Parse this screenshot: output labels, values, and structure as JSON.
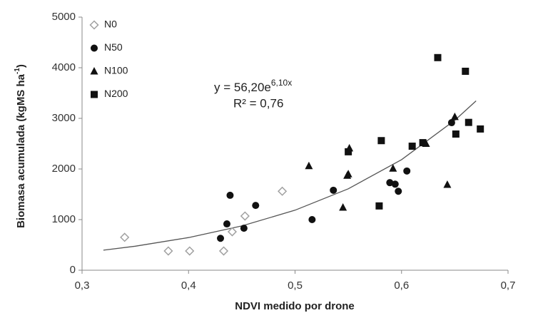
{
  "chart_data": {
    "type": "scatter",
    "xlabel": "NDVI medido por drone",
    "ylabel": "Biomasa acumulada (kgMS ha",
    "ylabel_sup": "-1",
    "ylabel_end": ")",
    "xlim": [
      0.3,
      0.7
    ],
    "xticks": [
      {
        "value": 0.3,
        "label": "0,3"
      },
      {
        "value": 0.4,
        "label": "0,4"
      },
      {
        "value": 0.5,
        "label": "0,5"
      },
      {
        "value": 0.6,
        "label": "0,6"
      },
      {
        "value": 0.7,
        "label": "0,7"
      }
    ],
    "ylim": [
      0,
      5000
    ],
    "yticks": [
      0,
      1000,
      2000,
      3000,
      4000,
      5000
    ],
    "grid": false,
    "legend": "upper left",
    "series": [
      {
        "name": "N0",
        "marker": "diamond",
        "color": "#a0a0a0",
        "x": [
          0.34,
          0.381,
          0.401,
          0.433,
          0.441,
          0.453,
          0.488
        ],
        "values": [
          650,
          380,
          380,
          380,
          760,
          1070,
          1560
        ]
      },
      {
        "name": "N50",
        "marker": "circle",
        "color": "#111111",
        "x": [
          0.43,
          0.436,
          0.439,
          0.452,
          0.463,
          0.516,
          0.536,
          0.589,
          0.594,
          0.597,
          0.605,
          0.647
        ],
        "values": [
          630,
          915,
          1480,
          830,
          1280,
          1000,
          1580,
          1730,
          1700,
          1560,
          1960,
          2915
        ]
      },
      {
        "name": "N100",
        "marker": "triangle",
        "color": "#111111",
        "x": [
          0.513,
          0.545,
          0.549,
          0.55,
          0.551,
          0.592,
          0.623,
          0.643,
          0.65
        ],
        "values": [
          2060,
          1240,
          1870,
          1900,
          2410,
          2010,
          2500,
          1690,
          3030
        ]
      },
      {
        "name": "N200",
        "marker": "square",
        "color": "#111111",
        "x": [
          0.55,
          0.579,
          0.581,
          0.61,
          0.62,
          0.634,
          0.66,
          0.651,
          0.663,
          0.674
        ],
        "values": [
          2340,
          1270,
          2560,
          2450,
          2520,
          4200,
          3930,
          2690,
          2920,
          2790
        ]
      }
    ],
    "trendline": {
      "x": [
        0.32,
        0.35,
        0.4,
        0.45,
        0.5,
        0.55,
        0.6,
        0.65,
        0.67
      ],
      "values": [
        396,
        475,
        645,
        874,
        1186,
        1609,
        2184,
        2962,
        3345
      ],
      "color": "#555555",
      "equation": "y = 56,20e",
      "equation_sup": "6,10x",
      "r2": "R² = 0,76"
    }
  }
}
